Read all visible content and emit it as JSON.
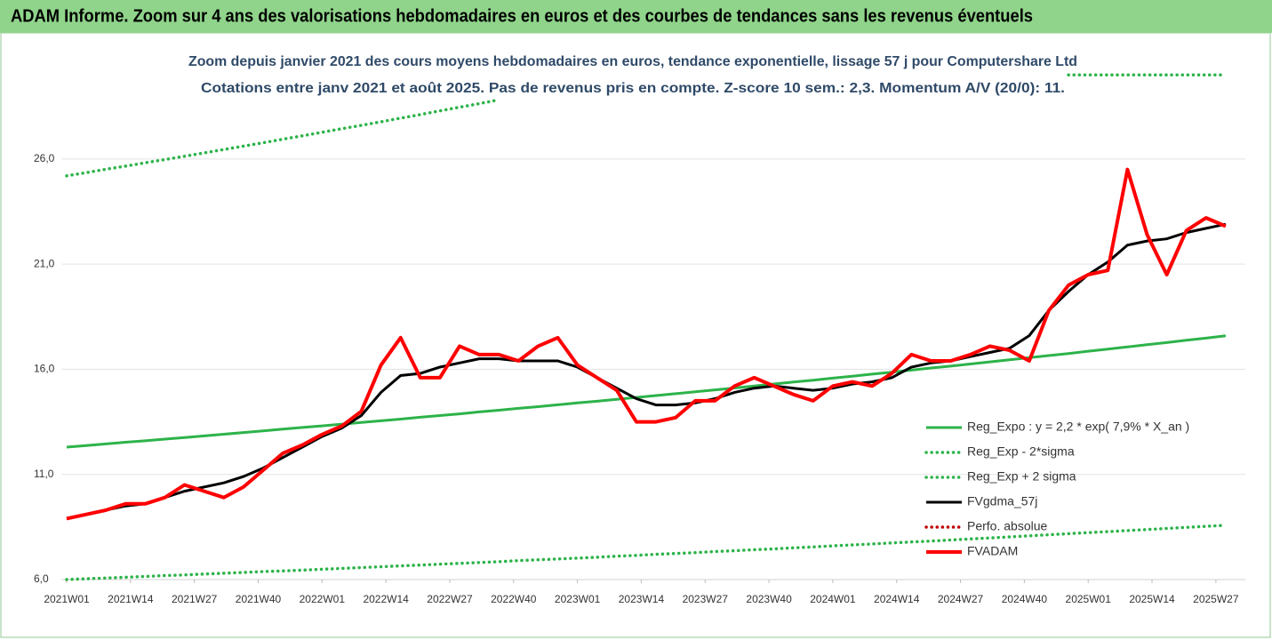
{
  "chart_data": {
    "type": "line",
    "title": "ADAM Informe. Zoom sur 4 ans des valorisations hebdomadaires en euros et des courbes de tendances sans les revenus éventuels",
    "subtitle": [
      "Zoom depuis janvier 2021 des cours moyens hebdomadaires en euros, tendance exponentielle, lissage 57 j pour Computershare Ltd",
      "Cotations entre janv 2021 et août 2025.  Pas de revenus pris en compte. Z-score 10 sem.: 2,3. Momentum A/V (20/0): 11."
    ],
    "x": [
      0,
      4,
      8,
      12,
      16,
      20,
      24,
      28,
      32,
      36,
      40,
      44,
      48,
      52,
      56,
      60,
      64,
      68,
      72,
      76,
      80,
      84,
      88,
      92,
      96,
      100,
      104,
      108,
      112,
      116,
      120,
      124,
      128,
      132,
      136,
      140,
      144,
      148,
      152,
      156,
      160,
      164,
      168,
      172,
      176,
      180,
      184,
      188,
      192,
      196,
      200,
      204,
      208,
      212,
      216,
      220,
      224,
      228,
      232,
      236
    ],
    "xlim": [
      -1,
      240
    ],
    "xticks": [
      {
        "value": 0,
        "label": "2021W01"
      },
      {
        "value": 13,
        "label": "2021W14"
      },
      {
        "value": 26,
        "label": "2021W27"
      },
      {
        "value": 39,
        "label": "2021W40"
      },
      {
        "value": 52,
        "label": "2022W01"
      },
      {
        "value": 65,
        "label": "2022W14"
      },
      {
        "value": 78,
        "label": "2022W27"
      },
      {
        "value": 91,
        "label": "2022W40"
      },
      {
        "value": 104,
        "label": "2023W01"
      },
      {
        "value": 117,
        "label": "2023W14"
      },
      {
        "value": 130,
        "label": "2023W27"
      },
      {
        "value": 143,
        "label": "2023W40"
      },
      {
        "value": 156,
        "label": "2024W01"
      },
      {
        "value": 169,
        "label": "2024W14"
      },
      {
        "value": 182,
        "label": "2024W27"
      },
      {
        "value": 195,
        "label": "2024W40"
      },
      {
        "value": 208,
        "label": "2025W01"
      },
      {
        "value": 221,
        "label": "2025W14"
      },
      {
        "value": 234,
        "label": "2025W27"
      }
    ],
    "ylim": [
      6,
      30.6
    ],
    "yticks": [
      {
        "value": 6,
        "label": "6,0"
      },
      {
        "value": 11,
        "label": "11,0"
      },
      {
        "value": 16,
        "label": "16,0"
      },
      {
        "value": 21,
        "label": "21,0"
      },
      {
        "value": 26,
        "label": "26,0"
      }
    ],
    "grid": true,
    "legend": "right",
    "series": [
      {
        "name": "Reg_Expo : y = 2,2 * exp( 7,9% *  X_an )",
        "color": "#2db34a",
        "style": "solid",
        "values": [
          12.3,
          12.37,
          12.45,
          12.53,
          12.6,
          12.68,
          12.75,
          12.83,
          12.91,
          12.99,
          13.07,
          13.15,
          13.23,
          13.31,
          13.39,
          13.47,
          13.55,
          13.63,
          13.72,
          13.8,
          13.88,
          13.97,
          14.05,
          14.14,
          14.22,
          14.31,
          14.4,
          14.48,
          14.57,
          14.66,
          14.75,
          14.84,
          14.93,
          15.02,
          15.11,
          15.2,
          15.3,
          15.39,
          15.48,
          15.58,
          15.67,
          15.77,
          15.86,
          15.96,
          16.06,
          16.15,
          16.25,
          16.35,
          16.45,
          16.55,
          16.65,
          16.75,
          16.86,
          16.96,
          17.06,
          17.17,
          17.27,
          17.38,
          17.48,
          17.59
        ]
      },
      {
        "name": "Reg_Exp - 2*sigma",
        "color": "#2db34a",
        "style": "dotted",
        "values": [
          6.0,
          6.04,
          6.07,
          6.11,
          6.15,
          6.19,
          6.22,
          6.26,
          6.3,
          6.34,
          6.38,
          6.41,
          6.45,
          6.49,
          6.53,
          6.57,
          6.61,
          6.65,
          6.69,
          6.73,
          6.77,
          6.81,
          6.85,
          6.9,
          6.94,
          6.98,
          7.02,
          7.06,
          7.11,
          7.15,
          7.2,
          7.24,
          7.28,
          7.33,
          7.37,
          7.42,
          7.46,
          7.51,
          7.55,
          7.6,
          7.65,
          7.69,
          7.74,
          7.79,
          7.83,
          7.88,
          7.93,
          7.98,
          8.03,
          8.08,
          8.13,
          8.18,
          8.23,
          8.28,
          8.33,
          8.38,
          8.43,
          8.48,
          8.53,
          8.58
        ]
      },
      {
        "name": "Reg_Exp + 2 sigma",
        "color": "#2db34a",
        "style": "dotted",
        "values": [
          25.2,
          25.35,
          25.51,
          25.66,
          25.82,
          25.97,
          26.13,
          26.29,
          26.45,
          26.61,
          26.77,
          26.94,
          27.1,
          27.27,
          27.44,
          27.6,
          27.77,
          27.94,
          28.11,
          28.29,
          28.46,
          28.63,
          28.81,
          null,
          null,
          null,
          null,
          null,
          null,
          null,
          null,
          null,
          null,
          null,
          null,
          null,
          null,
          null,
          null,
          null,
          null,
          null,
          null,
          null,
          null,
          null,
          null,
          null,
          null,
          null,
          null,
          30,
          30,
          30,
          30,
          30,
          30,
          30,
          30,
          30
        ]
      },
      {
        "name": "FVgdma_57j",
        "color": "#000000",
        "style": "solid",
        "values": [
          8.9,
          9.1,
          9.3,
          9.5,
          9.6,
          9.9,
          10.2,
          10.4,
          10.6,
          10.9,
          11.3,
          11.8,
          12.3,
          12.8,
          13.2,
          13.8,
          14.9,
          15.7,
          15.8,
          16.1,
          16.3,
          16.5,
          16.5,
          16.4,
          16.4,
          16.4,
          16.1,
          15.6,
          15.1,
          14.6,
          14.3,
          14.3,
          14.4,
          14.6,
          14.9,
          15.1,
          15.2,
          15.1,
          15.0,
          15.1,
          15.3,
          15.4,
          15.6,
          16.1,
          16.3,
          16.4,
          16.6,
          16.8,
          17.0,
          17.6,
          18.8,
          19.7,
          20.5,
          21.1,
          21.9,
          22.1,
          22.2,
          22.5,
          22.7,
          22.9
        ]
      },
      {
        "name": "Perfo. absolue",
        "color": "#c00000",
        "style": "dotted",
        "values": [
          null,
          null,
          null,
          null,
          null,
          null,
          null,
          null,
          null,
          null,
          null,
          null,
          null,
          null,
          null,
          null,
          null,
          null,
          null,
          null,
          null,
          null,
          null,
          null,
          null,
          null,
          null,
          null,
          null,
          null,
          null,
          null,
          null,
          null,
          null,
          null,
          null,
          null,
          null,
          null,
          null,
          null,
          null,
          null,
          null,
          null,
          null,
          null,
          null,
          null,
          null,
          null,
          null,
          null,
          null,
          null,
          null,
          null,
          null,
          null
        ]
      },
      {
        "name": "FVADAM",
        "color": "#ff0000",
        "style": "thick",
        "values": [
          8.9,
          9.1,
          9.3,
          9.6,
          9.6,
          9.9,
          10.5,
          10.2,
          9.9,
          10.4,
          11.2,
          12.0,
          12.4,
          12.9,
          13.3,
          14.0,
          16.2,
          17.5,
          15.6,
          15.6,
          17.1,
          16.7,
          16.7,
          16.4,
          17.1,
          17.5,
          16.2,
          15.6,
          15.0,
          13.5,
          13.5,
          13.7,
          14.5,
          14.5,
          15.2,
          15.6,
          15.2,
          14.8,
          14.5,
          15.2,
          15.4,
          15.2,
          15.8,
          16.7,
          16.4,
          16.4,
          16.7,
          17.1,
          16.9,
          16.4,
          18.8,
          20.0,
          20.5,
          20.7,
          25.5,
          22.4,
          20.5,
          22.6,
          23.2,
          22.8
        ]
      }
    ]
  }
}
